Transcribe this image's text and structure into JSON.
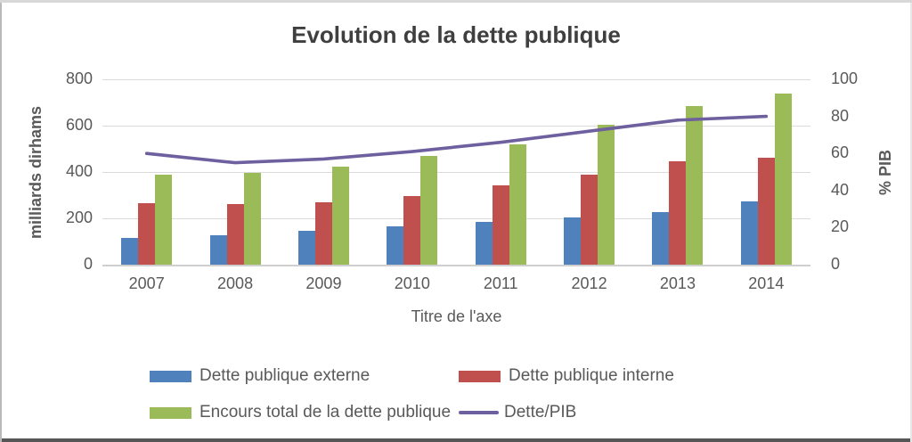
{
  "title": "Evolution de la dette publique",
  "axes": {
    "left": {
      "title": "milliards dirhams",
      "ticks": [
        "800",
        "600",
        "400",
        "200",
        "0"
      ]
    },
    "right": {
      "title": "% PIB",
      "ticks": [
        "100",
        "80",
        "60",
        "40",
        "20",
        "0"
      ]
    },
    "x": {
      "title": "Titre de l'axe"
    }
  },
  "chart_data": {
    "type": "bar",
    "subtype": "grouped-bars-with-line-overlay",
    "title": "Evolution de la dette publique",
    "xlabel": "Titre de l'axe",
    "ylabel_left": "milliards dirhams",
    "ylabel_right": "% PIB",
    "ylim_left": [
      0,
      800
    ],
    "ylim_right": [
      0,
      100
    ],
    "grid": true,
    "legend_position": "bottom",
    "categories": [
      "2007",
      "2008",
      "2009",
      "2010",
      "2011",
      "2012",
      "2013",
      "2014"
    ],
    "series": [
      {
        "name": "Dette publique externe",
        "type": "bar",
        "axis": "left",
        "color": "#4F81BD",
        "values": [
          115,
          128,
          148,
          165,
          185,
          205,
          228,
          272
        ]
      },
      {
        "name": "Dette publique interne",
        "type": "bar",
        "axis": "left",
        "color": "#C0504D",
        "values": [
          267,
          260,
          269,
          297,
          342,
          388,
          445,
          460
        ]
      },
      {
        "name": "Encours total de la dette publique",
        "type": "bar",
        "axis": "left",
        "color": "#9BBB59",
        "values": [
          390,
          397,
          425,
          470,
          520,
          605,
          685,
          740
        ]
      },
      {
        "name": "Dette/PIB",
        "type": "line",
        "axis": "right",
        "color": "#6E5F9E",
        "values": [
          60,
          55,
          57,
          61,
          66,
          72,
          78,
          80
        ]
      }
    ]
  },
  "colors": {
    "text": "#595959",
    "title_text": "#3F3F3F",
    "gridline": "#DADADA"
  }
}
